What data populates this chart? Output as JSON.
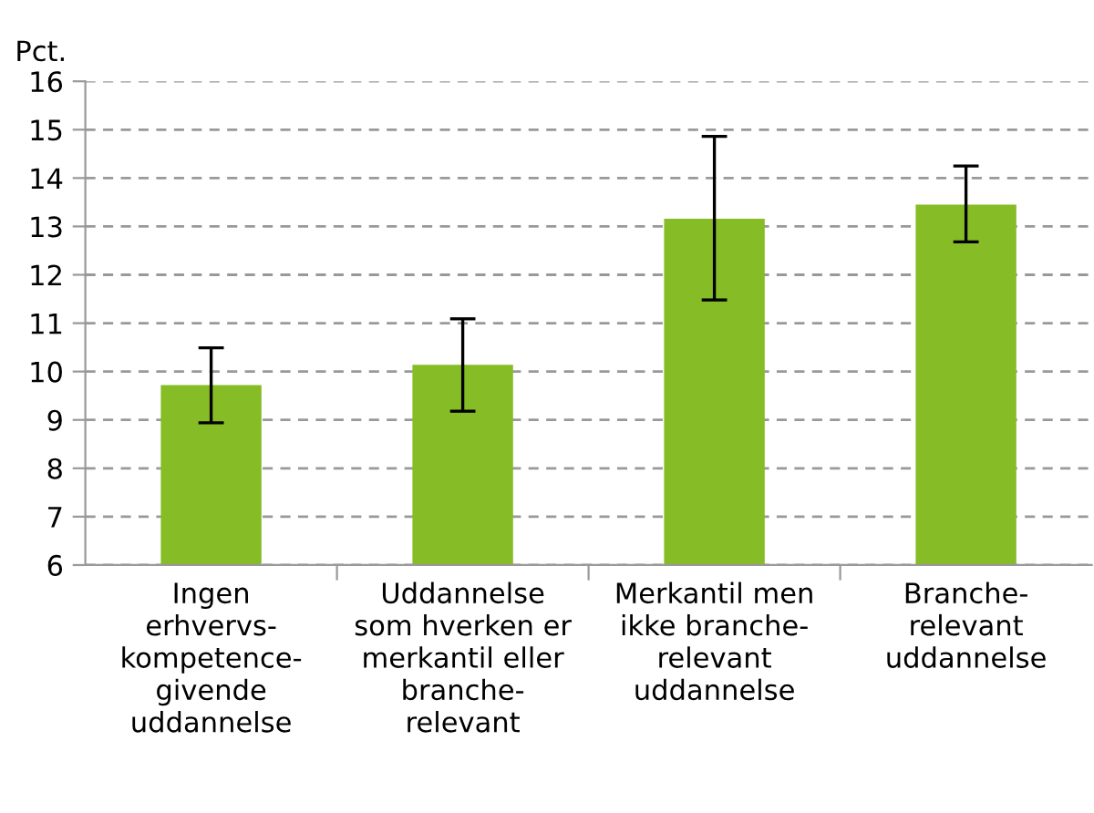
{
  "chart_data": {
    "type": "bar",
    "ylabel": "Pct.",
    "categories": [
      "Ingen\nerhvervs-\nkompetence-\ngivende\nuddannelse",
      "Uddannelse\nsom hverken er\nmerkantil eller\nbranche-\nrelevant",
      "Merkantil men\nikke branche-\nrelevant\nuddannelse",
      "Branche-\nrelevant\nuddannelse"
    ],
    "values": [
      9.72,
      10.14,
      13.16,
      13.45
    ],
    "errors": [
      [
        8.94,
        10.49
      ],
      [
        9.18,
        11.09
      ],
      [
        11.48,
        14.86
      ],
      [
        12.68,
        14.25
      ]
    ],
    "color": "#86bc25",
    "ylim": [
      6,
      16
    ],
    "yticks": [
      6,
      7,
      8,
      9,
      10,
      11,
      12,
      13,
      14,
      15,
      16
    ],
    "grid": "y"
  }
}
